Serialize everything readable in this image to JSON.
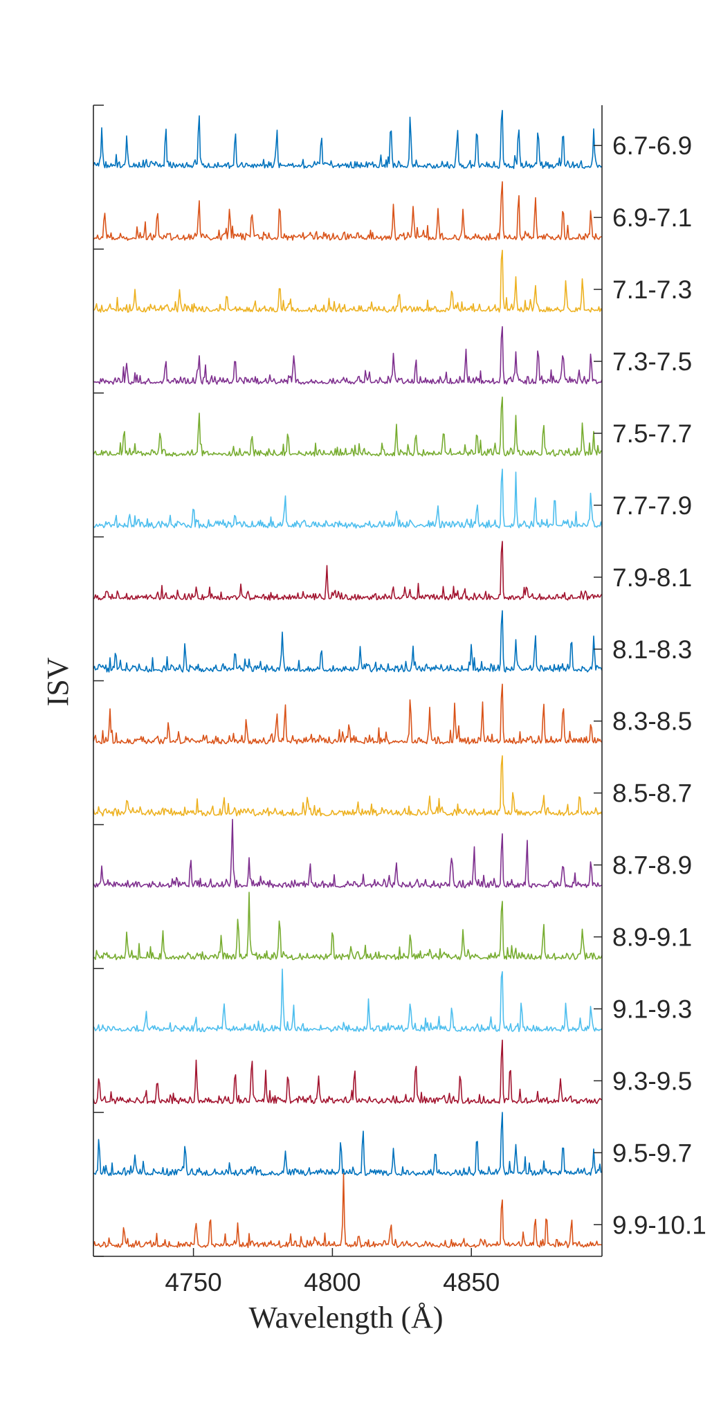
{
  "chart_data": {
    "type": "line",
    "title": "",
    "xlabel": "Wavelength (Å)",
    "ylabel": "ISV",
    "xlim": [
      4714,
      4897
    ],
    "xticks": [
      4750,
      4800,
      4850
    ],
    "grid": false,
    "legend": "none",
    "series_label_position": "right-axis",
    "series": [
      {
        "name": "9.9-10.1",
        "color": "#D95319",
        "peaks": [
          [
            4725,
            0.28
          ],
          [
            4751,
            0.35
          ],
          [
            4756,
            0.45
          ],
          [
            4766,
            0.3
          ],
          [
            4804,
            1.0
          ],
          [
            4821,
            0.3
          ],
          [
            4861,
            0.8
          ],
          [
            4873,
            0.38
          ],
          [
            4877,
            0.45
          ],
          [
            4886,
            0.3
          ]
        ]
      },
      {
        "name": "9.5-9.7",
        "color": "#0072BD",
        "peaks": [
          [
            4716,
            0.55
          ],
          [
            4729,
            0.3
          ],
          [
            4747,
            0.45
          ],
          [
            4783,
            0.3
          ],
          [
            4803,
            0.5
          ],
          [
            4811,
            0.7
          ],
          [
            4822,
            0.4
          ],
          [
            4837,
            0.35
          ],
          [
            4852,
            0.55
          ],
          [
            4861,
            1.0
          ],
          [
            4866,
            0.4
          ],
          [
            4883,
            0.45
          ],
          [
            4894,
            0.35
          ]
        ]
      },
      {
        "name": "9.3-9.5",
        "color": "#A2142F",
        "peaks": [
          [
            4716,
            0.4
          ],
          [
            4737,
            0.35
          ],
          [
            4751,
            0.6
          ],
          [
            4765,
            0.45
          ],
          [
            4771,
            0.7
          ],
          [
            4776,
            0.4
          ],
          [
            4784,
            0.45
          ],
          [
            4795,
            0.35
          ],
          [
            4808,
            0.5
          ],
          [
            4830,
            0.6
          ],
          [
            4846,
            0.4
          ],
          [
            4861,
            1.0
          ],
          [
            4864,
            0.55
          ],
          [
            4882,
            0.35
          ]
        ]
      },
      {
        "name": "9.1-9.3",
        "color": "#4DBEEE",
        "peaks": [
          [
            4733,
            0.3
          ],
          [
            4761,
            0.4
          ],
          [
            4782,
            0.9
          ],
          [
            4786,
            0.3
          ],
          [
            4813,
            0.4
          ],
          [
            4828,
            0.35
          ],
          [
            4843,
            0.35
          ],
          [
            4861,
            1.0
          ],
          [
            4868,
            0.45
          ],
          [
            4884,
            0.35
          ],
          [
            4893,
            0.4
          ]
        ]
      },
      {
        "name": "8.9-9.1",
        "color": "#77AC30",
        "peaks": [
          [
            4726,
            0.35
          ],
          [
            4739,
            0.4
          ],
          [
            4760,
            0.35
          ],
          [
            4766,
            0.6
          ],
          [
            4770,
            0.85
          ],
          [
            4781,
            0.6
          ],
          [
            4800,
            0.35
          ],
          [
            4828,
            0.35
          ],
          [
            4847,
            0.45
          ],
          [
            4861,
            1.0
          ],
          [
            4876,
            0.45
          ],
          [
            4890,
            0.4
          ]
        ]
      },
      {
        "name": "8.7-8.9",
        "color": "#7E2F8E",
        "peaks": [
          [
            4717,
            0.3
          ],
          [
            4749,
            0.4
          ],
          [
            4764,
            1.0
          ],
          [
            4770,
            0.4
          ],
          [
            4792,
            0.35
          ],
          [
            4823,
            0.35
          ],
          [
            4843,
            0.5
          ],
          [
            4851,
            0.55
          ],
          [
            4861,
            0.8
          ],
          [
            4870,
            0.55
          ],
          [
            4883,
            0.35
          ],
          [
            4893,
            0.35
          ]
        ]
      },
      {
        "name": "8.5-8.7",
        "color": "#EDB120",
        "peaks": [
          [
            4726,
            0.2
          ],
          [
            4761,
            0.25
          ],
          [
            4791,
            0.22
          ],
          [
            4835,
            0.22
          ],
          [
            4861,
            1.0
          ],
          [
            4865,
            0.35
          ],
          [
            4876,
            0.3
          ],
          [
            4889,
            0.28
          ]
        ]
      },
      {
        "name": "8.3-8.5",
        "color": "#D95319",
        "peaks": [
          [
            4720,
            0.4
          ],
          [
            4741,
            0.3
          ],
          [
            4769,
            0.35
          ],
          [
            4780,
            0.45
          ],
          [
            4783,
            0.55
          ],
          [
            4806,
            0.3
          ],
          [
            4828,
            0.65
          ],
          [
            4835,
            0.5
          ],
          [
            4844,
            0.6
          ],
          [
            4854,
            0.6
          ],
          [
            4861,
            1.0
          ],
          [
            4876,
            0.6
          ],
          [
            4883,
            0.6
          ],
          [
            4893,
            0.3
          ]
        ]
      },
      {
        "name": "8.1-8.3",
        "color": "#0072BD",
        "peaks": [
          [
            4722,
            0.3
          ],
          [
            4747,
            0.35
          ],
          [
            4765,
            0.3
          ],
          [
            4782,
            0.55
          ],
          [
            4796,
            0.35
          ],
          [
            4810,
            0.35
          ],
          [
            4829,
            0.35
          ],
          [
            4850,
            0.4
          ],
          [
            4861,
            1.0
          ],
          [
            4866,
            0.45
          ],
          [
            4873,
            0.55
          ],
          [
            4886,
            0.5
          ],
          [
            4894,
            0.4
          ]
        ]
      },
      {
        "name": "7.9-8.1",
        "color": "#A2142F",
        "peaks": [
          [
            4719,
            0.12
          ],
          [
            4751,
            0.12
          ],
          [
            4767,
            0.15
          ],
          [
            4798,
            0.45
          ],
          [
            4826,
            0.12
          ],
          [
            4861,
            1.0
          ],
          [
            4870,
            0.15
          ],
          [
            4891,
            0.12
          ]
        ]
      },
      {
        "name": "7.7-7.9",
        "color": "#4DBEEE",
        "peaks": [
          [
            4727,
            0.2
          ],
          [
            4750,
            0.3
          ],
          [
            4765,
            0.2
          ],
          [
            4783,
            0.45
          ],
          [
            4823,
            0.22
          ],
          [
            4838,
            0.28
          ],
          [
            4852,
            0.3
          ],
          [
            4861,
            1.0
          ],
          [
            4866,
            0.55
          ],
          [
            4873,
            0.4
          ],
          [
            4880,
            0.5
          ],
          [
            4893,
            0.5
          ]
        ]
      },
      {
        "name": "7.5-7.7",
        "color": "#77AC30",
        "peaks": [
          [
            4725,
            0.3
          ],
          [
            4738,
            0.3
          ],
          [
            4752,
            0.65
          ],
          [
            4771,
            0.3
          ],
          [
            4784,
            0.35
          ],
          [
            4823,
            0.45
          ],
          [
            4830,
            0.35
          ],
          [
            4840,
            0.35
          ],
          [
            4852,
            0.35
          ],
          [
            4861,
            1.0
          ],
          [
            4866,
            0.55
          ],
          [
            4876,
            0.45
          ],
          [
            4890,
            0.45
          ],
          [
            4894,
            0.3
          ]
        ]
      },
      {
        "name": "7.3-7.5",
        "color": "#7E2F8E",
        "peaks": [
          [
            4726,
            0.3
          ],
          [
            4740,
            0.35
          ],
          [
            4752,
            0.4
          ],
          [
            4765,
            0.35
          ],
          [
            4786,
            0.35
          ],
          [
            4822,
            0.45
          ],
          [
            4830,
            0.3
          ],
          [
            4848,
            0.45
          ],
          [
            4861,
            1.0
          ],
          [
            4866,
            0.45
          ],
          [
            4874,
            0.55
          ],
          [
            4883,
            0.45
          ],
          [
            4893,
            0.4
          ]
        ]
      },
      {
        "name": "7.1-7.3",
        "color": "#EDB120",
        "peaks": [
          [
            4729,
            0.3
          ],
          [
            4745,
            0.3
          ],
          [
            4762,
            0.25
          ],
          [
            4781,
            0.35
          ],
          [
            4824,
            0.3
          ],
          [
            4843,
            0.35
          ],
          [
            4861,
            1.0
          ],
          [
            4866,
            0.5
          ],
          [
            4873,
            0.4
          ],
          [
            4884,
            0.45
          ],
          [
            4890,
            0.4
          ]
        ]
      },
      {
        "name": "6.9-7.1",
        "color": "#D95319",
        "peaks": [
          [
            4718,
            0.4
          ],
          [
            4737,
            0.45
          ],
          [
            4752,
            0.55
          ],
          [
            4763,
            0.45
          ],
          [
            4771,
            0.4
          ],
          [
            4781,
            0.5
          ],
          [
            4822,
            0.5
          ],
          [
            4829,
            0.45
          ],
          [
            4838,
            0.45
          ],
          [
            4847,
            0.45
          ],
          [
            4861,
            1.0
          ],
          [
            4867,
            0.6
          ],
          [
            4873,
            0.6
          ],
          [
            4883,
            0.5
          ],
          [
            4893,
            0.45
          ]
        ]
      },
      {
        "name": "6.7-6.9",
        "color": "#0072BD",
        "peaks": [
          [
            4717,
            0.55
          ],
          [
            4726,
            0.45
          ],
          [
            4740,
            0.45
          ],
          [
            4752,
            0.8
          ],
          [
            4765,
            0.5
          ],
          [
            4780,
            0.55
          ],
          [
            4796,
            0.45
          ],
          [
            4821,
            0.6
          ],
          [
            4828,
            0.7
          ],
          [
            4845,
            0.55
          ],
          [
            4852,
            0.6
          ],
          [
            4861,
            1.0
          ],
          [
            4867,
            0.6
          ],
          [
            4874,
            0.6
          ],
          [
            4883,
            0.6
          ],
          [
            4894,
            0.5
          ]
        ]
      }
    ]
  }
}
